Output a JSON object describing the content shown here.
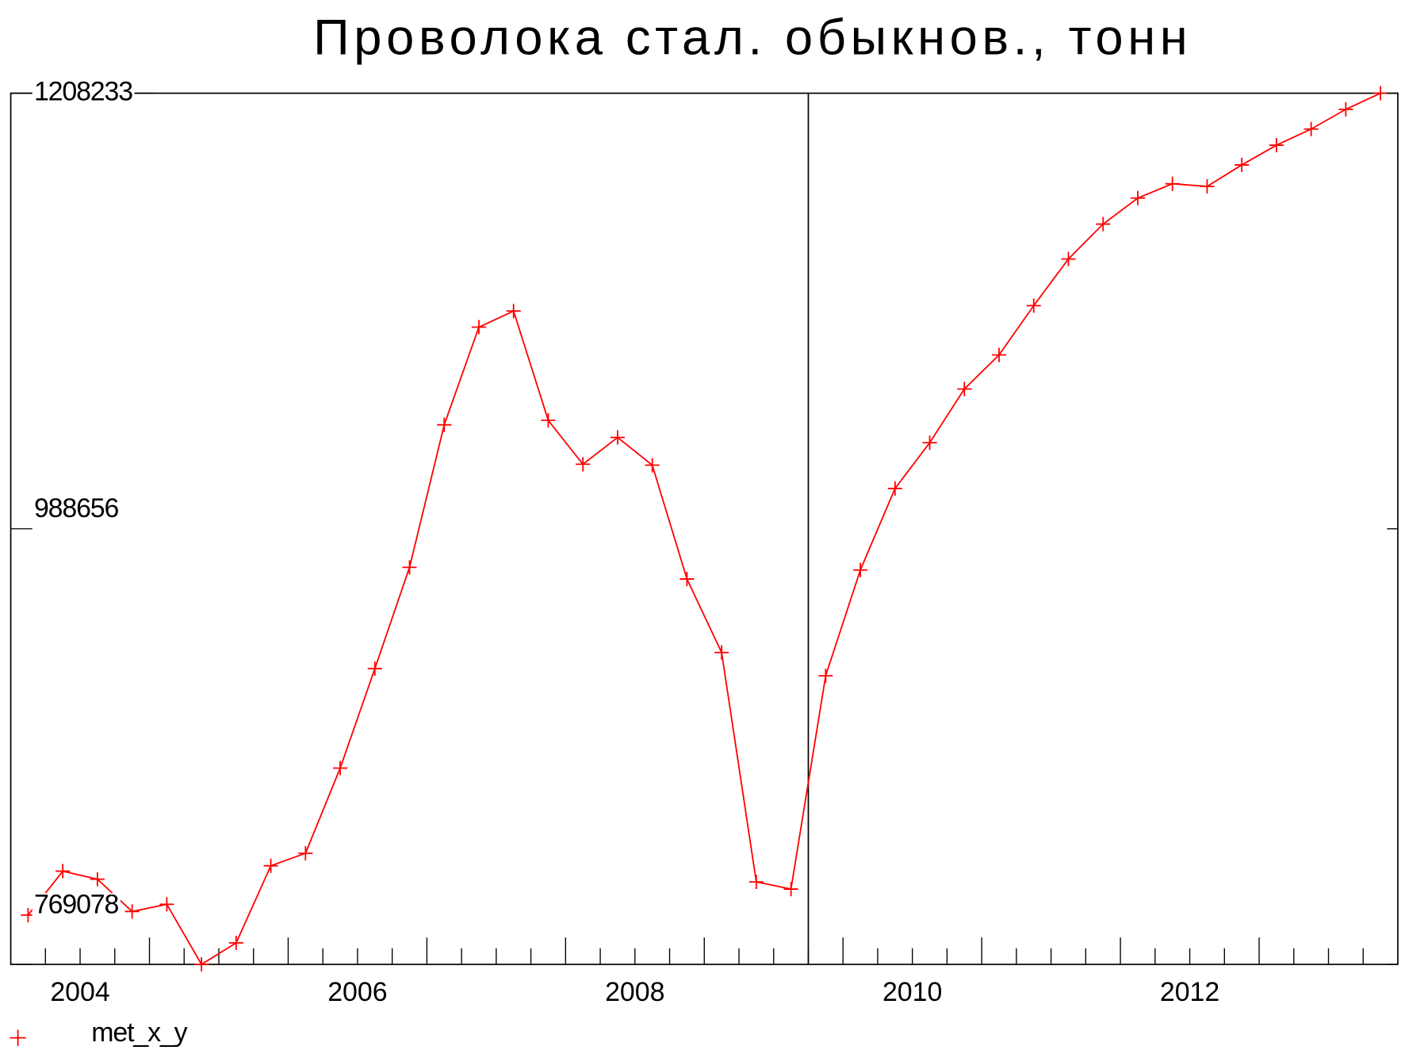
{
  "chart_data": {
    "type": "line",
    "title": "Проволока стал. обыкнов., тонн",
    "x": [
      2004.125,
      2004.375,
      2004.625,
      2004.875,
      2005.125,
      2005.375,
      2005.625,
      2005.875,
      2006.125,
      2006.375,
      2006.625,
      2006.875,
      2007.125,
      2007.375,
      2007.625,
      2007.875,
      2008.125,
      2008.375,
      2008.625,
      2008.875,
      2009.125,
      2009.375,
      2009.625,
      2009.875,
      2010.125,
      2010.375,
      2010.625,
      2010.875,
      2011.125,
      2011.375,
      2011.625,
      2011.875,
      2012.125,
      2012.375,
      2012.625,
      2012.875,
      2013.125,
      2013.375,
      2013.625,
      2013.875
    ],
    "series": [
      {
        "name": "met_x_y",
        "color": "#ff0000",
        "values": [
          793927,
          816065,
          811999,
          795734,
          799349,
          769078,
          779921,
          818776,
          825101,
          868022,
          918172,
          969225,
          1041062,
          1090308,
          1098440,
          1043321,
          1021182,
          1034736,
          1020731,
          963352,
          926304,
          810644,
          807029,
          914556,
          967870,
          1008984,
          1032026,
          1059134,
          1076302,
          1101151,
          1124645,
          1142265,
          1155367,
          1162596,
          1161240,
          1172084,
          1182023,
          1190156,
          1200096,
          1208233
        ]
      }
    ],
    "xlim": [
      2004,
      2014
    ],
    "xticks": [
      {
        "value": 2004.5,
        "label": "2004"
      },
      {
        "value": 2006.5,
        "label": "2006"
      },
      {
        "value": 2008.5,
        "label": "2008"
      },
      {
        "value": 2010.5,
        "label": "2010"
      },
      {
        "value": 2012.5,
        "label": "2012"
      }
    ],
    "ylim": [
      769078,
      1208233
    ],
    "yticks": [
      769078,
      988656,
      1208233
    ],
    "vline_x": 2009.75,
    "legend": "bottom-left"
  }
}
